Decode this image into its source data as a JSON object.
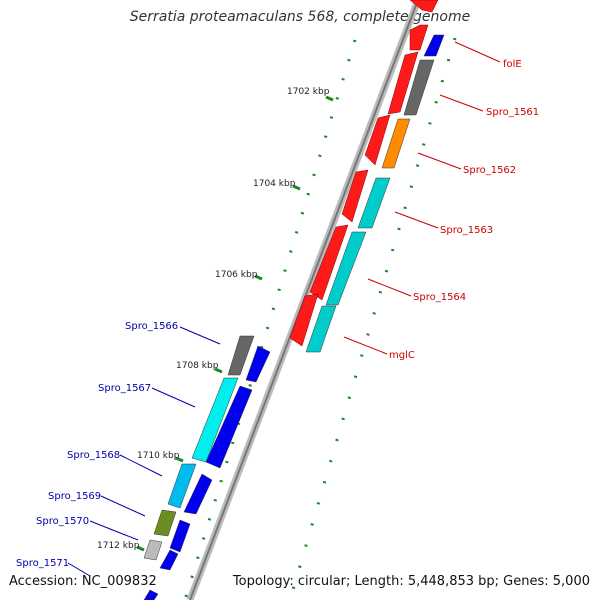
{
  "title": "Serratia proteamaculans 568, complete genome",
  "accession": "Accession: NC_009832",
  "stats": "Topology: circular; Length: 5,448,853 bp; Genes: 5,000",
  "ticks": [
    {
      "label": "1702 kbp"
    },
    {
      "label": "1704 kbp"
    },
    {
      "label": "1706 kbp"
    },
    {
      "label": "1708 kbp"
    },
    {
      "label": "1710 kbp"
    },
    {
      "label": "1712 kbp"
    }
  ],
  "forward_genes": [
    {
      "name": "folE",
      "color": "#0000ee"
    },
    {
      "name": "Spro_1561",
      "color": "#666666"
    },
    {
      "name": "Spro_1562",
      "color": "#ff8c00"
    },
    {
      "name": "Spro_1563",
      "color": "#00cccc"
    },
    {
      "name": "Spro_1564",
      "color": "#00cccc"
    },
    {
      "name": "mglC",
      "color": "#00cccc"
    }
  ],
  "reverse_genes": [
    {
      "name": "Spro_1566",
      "color": "#0000ee"
    },
    {
      "name": "Spro_1567",
      "color": "#0000ee"
    },
    {
      "name": "Spro_1568",
      "color": "#0000ee"
    },
    {
      "name": "Spro_1569",
      "color": "#0000ee"
    },
    {
      "name": "Spro_1570",
      "color": "#0000ee"
    },
    {
      "name": "Spro_1571",
      "color": "#0000ee"
    }
  ],
  "legend_colors": {
    "cds": "#ff0000",
    "backbone": "#888888",
    "gc_skew": "#1a8a1a"
  }
}
